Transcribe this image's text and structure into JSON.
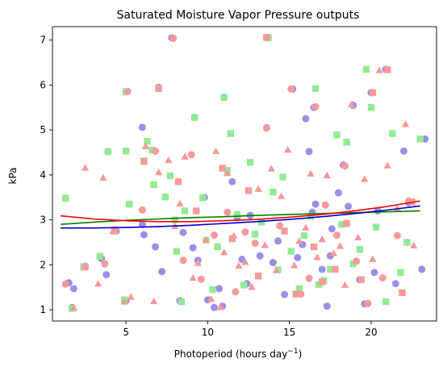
{
  "chart_data": {
    "type": "scatter",
    "title": "Saturated Moisture Vapor Pressure outputs",
    "xlabel_text": "Photoperiod (hours day",
    "xlabel_sup": "−1",
    "xlabel_close": ")",
    "ylabel": "kPa",
    "xlim": [
      0.5,
      24.0
    ],
    "ylim": [
      0.75,
      7.3
    ],
    "xticks": [
      5,
      10,
      15,
      20
    ],
    "yticks": [
      1,
      2,
      3,
      4,
      5,
      6,
      7
    ],
    "grid": false,
    "legend": "none",
    "series": [
      {
        "marker": "circle",
        "color": "#9b8fe6",
        "points": [
          [
            1.3,
            3.48
          ],
          [
            1.5,
            1.6
          ],
          [
            1.8,
            1.47
          ],
          [
            1.7,
            1.05
          ],
          [
            2.5,
            1.97
          ],
          [
            3.5,
            2.14
          ],
          [
            3.8,
            1.78
          ],
          [
            3.7,
            2.02
          ],
          [
            3.9,
            4.52
          ],
          [
            4.4,
            2.75
          ],
          [
            5.0,
            1.2
          ],
          [
            5.2,
            3.35
          ],
          [
            5.0,
            5.85
          ],
          [
            6.0,
            2.9
          ],
          [
            6.0,
            5.06
          ],
          [
            6.1,
            2.67
          ],
          [
            6.8,
            2.4
          ],
          [
            7.0,
            5.95
          ],
          [
            7.2,
            1.85
          ],
          [
            7.8,
            7.05
          ],
          [
            8.3,
            1.2
          ],
          [
            8.5,
            2.72
          ],
          [
            9.1,
            2.38
          ],
          [
            9.4,
            2.1
          ],
          [
            9.8,
            3.5
          ],
          [
            10.0,
            1.22
          ],
          [
            10.4,
            1.05
          ],
          [
            10.7,
            1.47
          ],
          [
            10.9,
            1.08
          ],
          [
            11.0,
            5.73
          ],
          [
            11.5,
            3.85
          ],
          [
            11.8,
            3.05
          ],
          [
            12.1,
            2.12
          ],
          [
            12.4,
            1.58
          ],
          [
            12.6,
            3.1
          ],
          [
            13.2,
            2.2
          ],
          [
            13.6,
            5.05
          ],
          [
            13.7,
            7.05
          ],
          [
            14.0,
            2.05
          ],
          [
            14.3,
            2.53
          ],
          [
            14.7,
            1.34
          ],
          [
            15.2,
            5.91
          ],
          [
            15.5,
            2.16
          ],
          [
            15.8,
            2.45
          ],
          [
            16.0,
            5.25
          ],
          [
            16.2,
            4.52
          ],
          [
            16.4,
            3.17
          ],
          [
            16.5,
            5.5
          ],
          [
            16.6,
            3.35
          ],
          [
            17.0,
            1.9
          ],
          [
            17.3,
            1.08
          ],
          [
            17.5,
            2.2
          ],
          [
            17.6,
            2.8
          ],
          [
            18.0,
            3.6
          ],
          [
            18.3,
            4.22
          ],
          [
            18.6,
            3.3
          ],
          [
            18.9,
            5.55
          ],
          [
            19.3,
            1.67
          ],
          [
            19.6,
            1.13
          ],
          [
            20.0,
            5.83
          ],
          [
            20.2,
            1.83
          ],
          [
            20.4,
            3.2
          ],
          [
            20.9,
            6.35
          ],
          [
            21.5,
            1.58
          ],
          [
            22.0,
            4.53
          ],
          [
            22.3,
            3.38
          ],
          [
            23.1,
            1.9
          ],
          [
            23.3,
            4.8
          ]
        ]
      },
      {
        "marker": "square",
        "color": "#93ea93",
        "points": [
          [
            1.3,
            3.48
          ],
          [
            1.7,
            1.03
          ],
          [
            2.4,
            1.96
          ],
          [
            3.4,
            2.19
          ],
          [
            3.9,
            4.52
          ],
          [
            4.3,
            2.75
          ],
          [
            4.9,
            1.22
          ],
          [
            5.0,
            4.53
          ],
          [
            5.0,
            5.85
          ],
          [
            5.2,
            3.35
          ],
          [
            6.1,
            4.31
          ],
          [
            6.3,
            4.75
          ],
          [
            6.6,
            4.55
          ],
          [
            6.7,
            3.78
          ],
          [
            7.0,
            5.93
          ],
          [
            7.4,
            3.51
          ],
          [
            7.7,
            3.98
          ],
          [
            8.0,
            3.0
          ],
          [
            8.1,
            2.3
          ],
          [
            8.4,
            1.18
          ],
          [
            8.6,
            3.2
          ],
          [
            9.2,
            5.28
          ],
          [
            9.7,
            3.49
          ],
          [
            9.9,
            2.55
          ],
          [
            10.3,
            1.45
          ],
          [
            10.6,
            2.4
          ],
          [
            11.0,
            5.72
          ],
          [
            11.2,
            4.1
          ],
          [
            11.4,
            4.92
          ],
          [
            11.8,
            3.12
          ],
          [
            12.2,
            1.55
          ],
          [
            12.6,
            4.28
          ],
          [
            12.9,
            2.68
          ],
          [
            13.3,
            2.95
          ],
          [
            13.7,
            7.05
          ],
          [
            14.0,
            3.62
          ],
          [
            14.3,
            1.89
          ],
          [
            14.6,
            3.95
          ],
          [
            15.1,
            2.3
          ],
          [
            15.6,
            1.47
          ],
          [
            15.9,
            2.65
          ],
          [
            16.3,
            3.08
          ],
          [
            16.6,
            5.92
          ],
          [
            16.8,
            1.56
          ],
          [
            17.1,
            1.65
          ],
          [
            17.5,
            1.9
          ],
          [
            17.9,
            4.89
          ],
          [
            18.2,
            2.9
          ],
          [
            18.5,
            4.73
          ],
          [
            18.9,
            2.02
          ],
          [
            19.3,
            2.34
          ],
          [
            19.7,
            6.35
          ],
          [
            20.0,
            5.5
          ],
          [
            20.3,
            2.84
          ],
          [
            20.9,
            1.18
          ],
          [
            21.3,
            4.92
          ],
          [
            21.8,
            1.83
          ],
          [
            22.2,
            2.5
          ],
          [
            23.0,
            4.8
          ]
        ]
      },
      {
        "marker": "triangle",
        "color": "#f59a9a",
        "points": [
          [
            1.3,
            1.58
          ],
          [
            1.8,
            1.03
          ],
          [
            2.5,
            4.15
          ],
          [
            3.3,
            1.57
          ],
          [
            3.6,
            3.93
          ],
          [
            4.2,
            2.74
          ],
          [
            4.9,
            1.17
          ],
          [
            5.3,
            1.28
          ],
          [
            6.2,
            4.63
          ],
          [
            6.7,
            1.18
          ],
          [
            7.0,
            4.05
          ],
          [
            7.6,
            4.32
          ],
          [
            8.0,
            2.85
          ],
          [
            8.3,
            3.35
          ],
          [
            8.6,
            4.4
          ],
          [
            9.1,
            1.7
          ],
          [
            9.4,
            2.03
          ],
          [
            9.9,
            2.55
          ],
          [
            10.2,
            1.23
          ],
          [
            10.5,
            4.52
          ],
          [
            10.8,
            1.05
          ],
          [
            11.0,
            2.27
          ],
          [
            11.2,
            4.03
          ],
          [
            11.6,
            2.64
          ],
          [
            11.9,
            1.97
          ],
          [
            12.3,
            2.05
          ],
          [
            12.7,
            1.5
          ],
          [
            13.1,
            3.68
          ],
          [
            13.5,
            2.43
          ],
          [
            13.9,
            4.13
          ],
          [
            14.2,
            1.87
          ],
          [
            14.5,
            3.52
          ],
          [
            14.9,
            4.55
          ],
          [
            15.3,
            1.98
          ],
          [
            15.6,
            2.52
          ],
          [
            16.0,
            2.82
          ],
          [
            16.3,
            4.02
          ],
          [
            16.7,
            2.16
          ],
          [
            17.0,
            2.56
          ],
          [
            17.3,
            3.98
          ],
          [
            17.7,
            2.25
          ],
          [
            18.1,
            2.41
          ],
          [
            18.4,
            1.54
          ],
          [
            18.8,
            5.56
          ],
          [
            19.2,
            2.6
          ],
          [
            19.6,
            3.9
          ],
          [
            20.1,
            2.12
          ],
          [
            20.5,
            6.32
          ],
          [
            21.0,
            4.2
          ],
          [
            21.6,
            3.25
          ],
          [
            22.1,
            5.12
          ],
          [
            22.6,
            2.42
          ]
        ]
      },
      {
        "marker": "circle",
        "color": "#f59a9a",
        "points": [
          [
            1.3,
            1.57
          ],
          [
            3.7,
            2.03
          ],
          [
            5.1,
            5.86
          ],
          [
            6.0,
            3.22
          ],
          [
            6.8,
            4.53
          ],
          [
            7.9,
            7.04
          ],
          [
            8.5,
            2.1
          ],
          [
            9.0,
            4.45
          ],
          [
            9.6,
            1.68
          ],
          [
            10.4,
            2.66
          ],
          [
            11.2,
            3.17
          ],
          [
            11.7,
            1.4
          ],
          [
            12.3,
            2.73
          ],
          [
            12.9,
            2.48
          ],
          [
            13.6,
            5.04
          ],
          [
            14.4,
            2.87
          ],
          [
            15.1,
            5.91
          ],
          [
            15.7,
            1.35
          ],
          [
            16.2,
            1.7
          ],
          [
            16.6,
            5.52
          ],
          [
            17.2,
            3.33
          ],
          [
            17.9,
            2.66
          ],
          [
            18.4,
            4.2
          ],
          [
            19.1,
            2.08
          ],
          [
            19.8,
            1.14
          ],
          [
            20.7,
            1.71
          ],
          [
            21.6,
            2.65
          ],
          [
            22.3,
            3.42
          ]
        ]
      },
      {
        "marker": "square",
        "color": "#f59a9a",
        "points": [
          [
            2.5,
            1.95
          ],
          [
            4.3,
            2.78
          ],
          [
            6.1,
            4.3
          ],
          [
            7.0,
            5.92
          ],
          [
            8.2,
            3.85
          ],
          [
            9.3,
            3.2
          ],
          [
            10.9,
            4.15
          ],
          [
            11.5,
            2.58
          ],
          [
            12.5,
            3.65
          ],
          [
            13.1,
            1.75
          ],
          [
            13.6,
            7.06
          ],
          [
            14.7,
            2.75
          ],
          [
            15.4,
            1.35
          ],
          [
            16.5,
            2.4
          ],
          [
            17.0,
            1.62
          ],
          [
            17.8,
            1.9
          ],
          [
            18.5,
            2.92
          ],
          [
            19.4,
            1.67
          ],
          [
            20.1,
            5.83
          ],
          [
            21.0,
            6.34
          ],
          [
            21.9,
            1.38
          ],
          [
            22.5,
            3.4
          ]
        ]
      }
    ],
    "lines": [
      {
        "name": "",
        "color": "#008000",
        "x": [
          1.0,
          3,
          5,
          7,
          9,
          11,
          13,
          15,
          17,
          19,
          21,
          23
        ],
        "y": [
          2.9,
          2.95,
          2.99,
          3.02,
          3.05,
          3.07,
          3.1,
          3.12,
          3.14,
          3.16,
          3.18,
          3.2
        ]
      },
      {
        "name": "",
        "color": "#0000cc",
        "x": [
          1.0,
          3,
          5,
          7,
          9,
          11,
          13,
          15,
          17,
          19,
          21,
          23
        ],
        "y": [
          2.82,
          2.82,
          2.83,
          2.85,
          2.88,
          2.92,
          2.96,
          3.01,
          3.07,
          3.14,
          3.22,
          3.31
        ]
      },
      {
        "name": "",
        "color": "#ff0000",
        "x": [
          1.0,
          3,
          5,
          7,
          9,
          11,
          13,
          15,
          17,
          19,
          21,
          23
        ],
        "y": [
          3.09,
          3.02,
          2.98,
          2.96,
          2.96,
          2.98,
          3.01,
          3.06,
          3.12,
          3.2,
          3.3,
          3.42
        ]
      }
    ]
  }
}
